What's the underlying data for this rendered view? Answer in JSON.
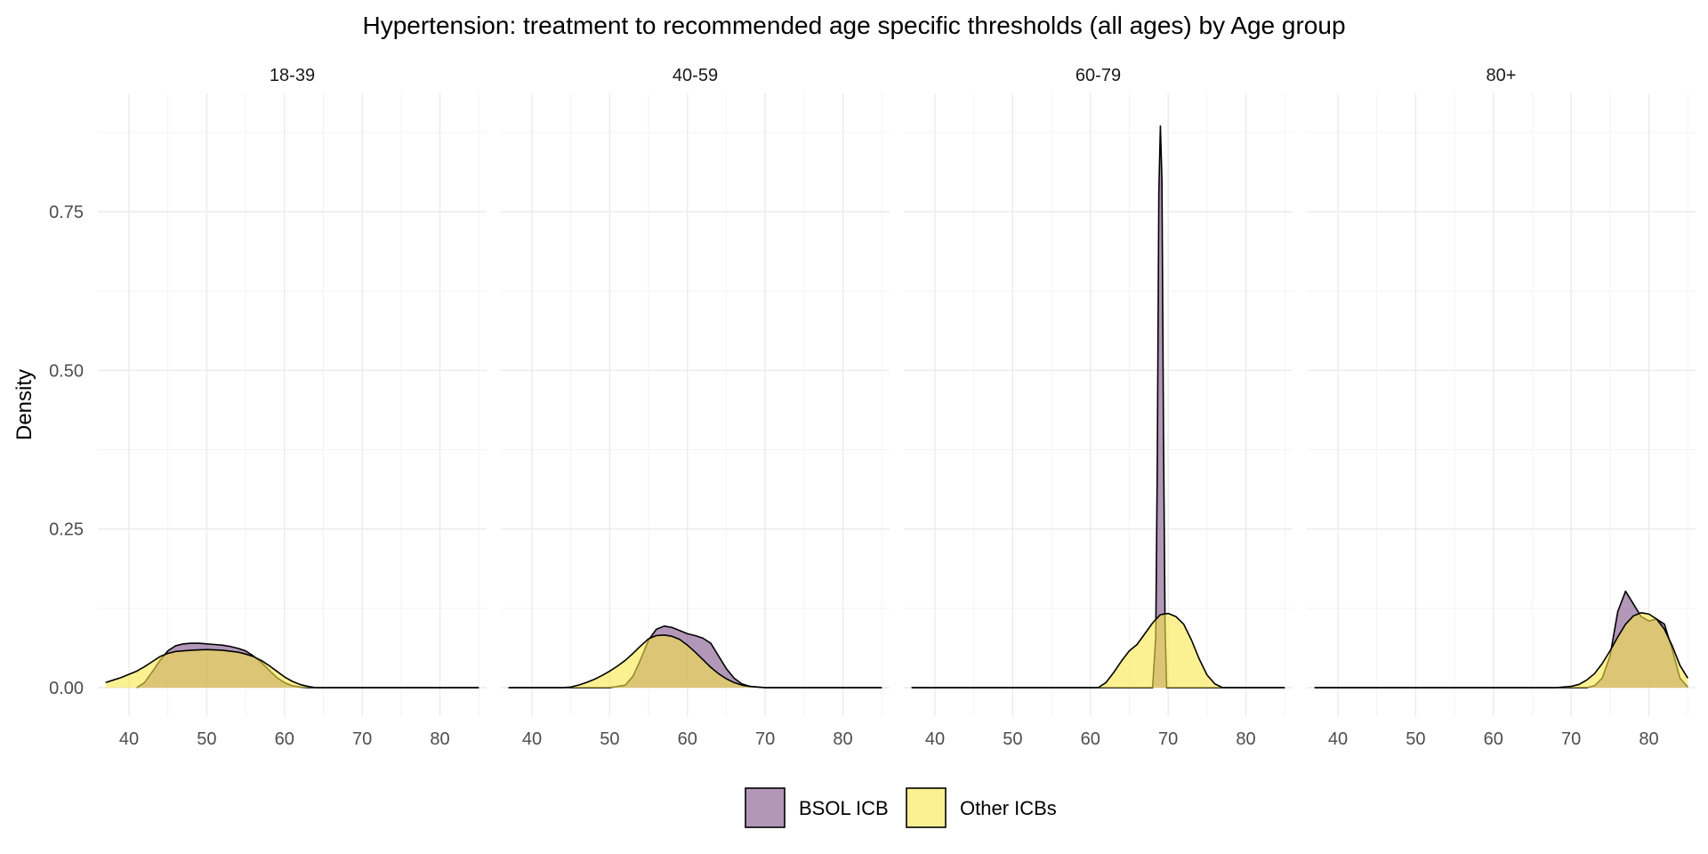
{
  "chart_data": {
    "type": "area",
    "subtype": "faceted-density",
    "title": "Hypertension: treatment to recommended age specific thresholds (all ages) by Age group",
    "xlabel": "",
    "ylabel": "Density",
    "xlim": [
      36,
      86
    ],
    "ylim": [
      0,
      0.9
    ],
    "x_ticks": [
      40,
      50,
      60,
      70,
      80
    ],
    "x_tick_labels": [
      "40",
      "50",
      "60",
      "70",
      "80"
    ],
    "y_ticks": [
      0,
      0.25,
      0.5,
      0.75
    ],
    "y_tick_labels": [
      "0.00",
      "0.25",
      "0.50",
      "0.75"
    ],
    "grid": true,
    "legend": {
      "position": "bottom",
      "entries": [
        "BSOL ICB",
        "Other ICBs"
      ]
    },
    "colors": {
      "BSOL ICB": "#7e5288",
      "Other ICBs": "#f9e64a",
      "outline": "#000000"
    },
    "fill_opacity": 0.6,
    "facets": [
      {
        "label": "18-39",
        "series": [
          {
            "name": "BSOL ICB",
            "x": [
              41,
              42,
              43,
              44,
              45,
              46,
              47,
              48,
              49,
              50,
              51,
              52,
              53,
              54,
              55,
              56,
              57,
              58,
              59,
              60,
              61,
              62,
              63,
              64,
              65,
              70,
              80,
              85
            ],
            "y": [
              0.0,
              0.008,
              0.025,
              0.043,
              0.058,
              0.066,
              0.069,
              0.07,
              0.07,
              0.069,
              0.068,
              0.067,
              0.065,
              0.062,
              0.058,
              0.05,
              0.04,
              0.028,
              0.016,
              0.008,
              0.003,
              0.001,
              0.0,
              0.0,
              0.0,
              0.0,
              0.0,
              0.0
            ]
          },
          {
            "name": "Other ICBs",
            "x": [
              37,
              38,
              39,
              40,
              41,
              42,
              43,
              44,
              45,
              46,
              48,
              50,
              52,
              54,
              55,
              56,
              57,
              58,
              59,
              60,
              61,
              62,
              63,
              64,
              65,
              70,
              80,
              85
            ],
            "y": [
              0.008,
              0.012,
              0.016,
              0.021,
              0.026,
              0.033,
              0.041,
              0.049,
              0.054,
              0.057,
              0.059,
              0.06,
              0.059,
              0.056,
              0.053,
              0.049,
              0.043,
              0.035,
              0.026,
              0.017,
              0.01,
              0.005,
              0.002,
              0.0,
              0.0,
              0.0,
              0.0,
              0.0
            ]
          }
        ]
      },
      {
        "label": "40-59",
        "series": [
          {
            "name": "BSOL ICB",
            "x": [
              37,
              50,
              52,
              53,
              54,
              55,
              56,
              57,
              58,
              59,
              60,
              61,
              62,
              63,
              64,
              65,
              66,
              67,
              68,
              70,
              80,
              85
            ],
            "y": [
              0.0,
              0.0,
              0.004,
              0.018,
              0.045,
              0.075,
              0.092,
              0.097,
              0.095,
              0.09,
              0.085,
              0.082,
              0.078,
              0.07,
              0.05,
              0.03,
              0.015,
              0.006,
              0.002,
              0.0,
              0.0,
              0.0
            ]
          },
          {
            "name": "Other ICBs",
            "x": [
              37,
              44,
              45,
              46,
              47,
              48,
              49,
              50,
              51,
              52,
              53,
              54,
              55,
              56,
              57,
              58,
              59,
              60,
              61,
              62,
              63,
              64,
              65,
              66,
              67,
              68,
              69,
              70,
              80,
              85
            ],
            "y": [
              0.0,
              0.0,
              0.001,
              0.004,
              0.008,
              0.013,
              0.019,
              0.026,
              0.034,
              0.043,
              0.054,
              0.066,
              0.077,
              0.082,
              0.083,
              0.081,
              0.076,
              0.067,
              0.056,
              0.044,
              0.032,
              0.022,
              0.014,
              0.008,
              0.004,
              0.002,
              0.001,
              0.0,
              0.0,
              0.0
            ]
          }
        ]
      },
      {
        "label": "60-79",
        "series": [
          {
            "name": "BSOL ICB",
            "x": [
              37,
              68.0,
              68.4,
              68.6,
              68.8,
              69.0,
              69.2,
              69.4,
              69.6,
              69.8,
              70.2,
              85
            ],
            "y": [
              0.0,
              0.0,
              0.08,
              0.35,
              0.78,
              0.885,
              0.8,
              0.4,
              0.1,
              0.0,
              0.0,
              0.0
            ]
          },
          {
            "name": "Other ICBs",
            "x": [
              37,
              61,
              62,
              63,
              64,
              65,
              66,
              67,
              68,
              69,
              70,
              71,
              72,
              73,
              74,
              75,
              76,
              77,
              85
            ],
            "y": [
              0.0,
              0.0,
              0.008,
              0.024,
              0.042,
              0.058,
              0.068,
              0.085,
              0.102,
              0.115,
              0.117,
              0.112,
              0.1,
              0.075,
              0.045,
              0.02,
              0.006,
              0.0,
              0.0
            ]
          }
        ]
      },
      {
        "label": "80+",
        "series": [
          {
            "name": "BSOL ICB",
            "x": [
              37,
              72,
              73,
              74,
              75,
              76,
              77,
              78,
              79,
              80,
              81,
              82,
              83,
              84,
              85
            ],
            "y": [
              0.0,
              0.0,
              0.003,
              0.015,
              0.05,
              0.12,
              0.152,
              0.132,
              0.112,
              0.105,
              0.108,
              0.1,
              0.06,
              0.015,
              0.001
            ]
          },
          {
            "name": "Other ICBs",
            "x": [
              37,
              68,
              70,
              71,
              72,
              73,
              74,
              75,
              76,
              77,
              78,
              79,
              80,
              81,
              82,
              83,
              84,
              85
            ],
            "y": [
              0.0,
              0.0,
              0.002,
              0.005,
              0.012,
              0.022,
              0.038,
              0.058,
              0.08,
              0.1,
              0.113,
              0.118,
              0.116,
              0.108,
              0.092,
              0.066,
              0.035,
              0.015
            ]
          }
        ]
      }
    ]
  }
}
